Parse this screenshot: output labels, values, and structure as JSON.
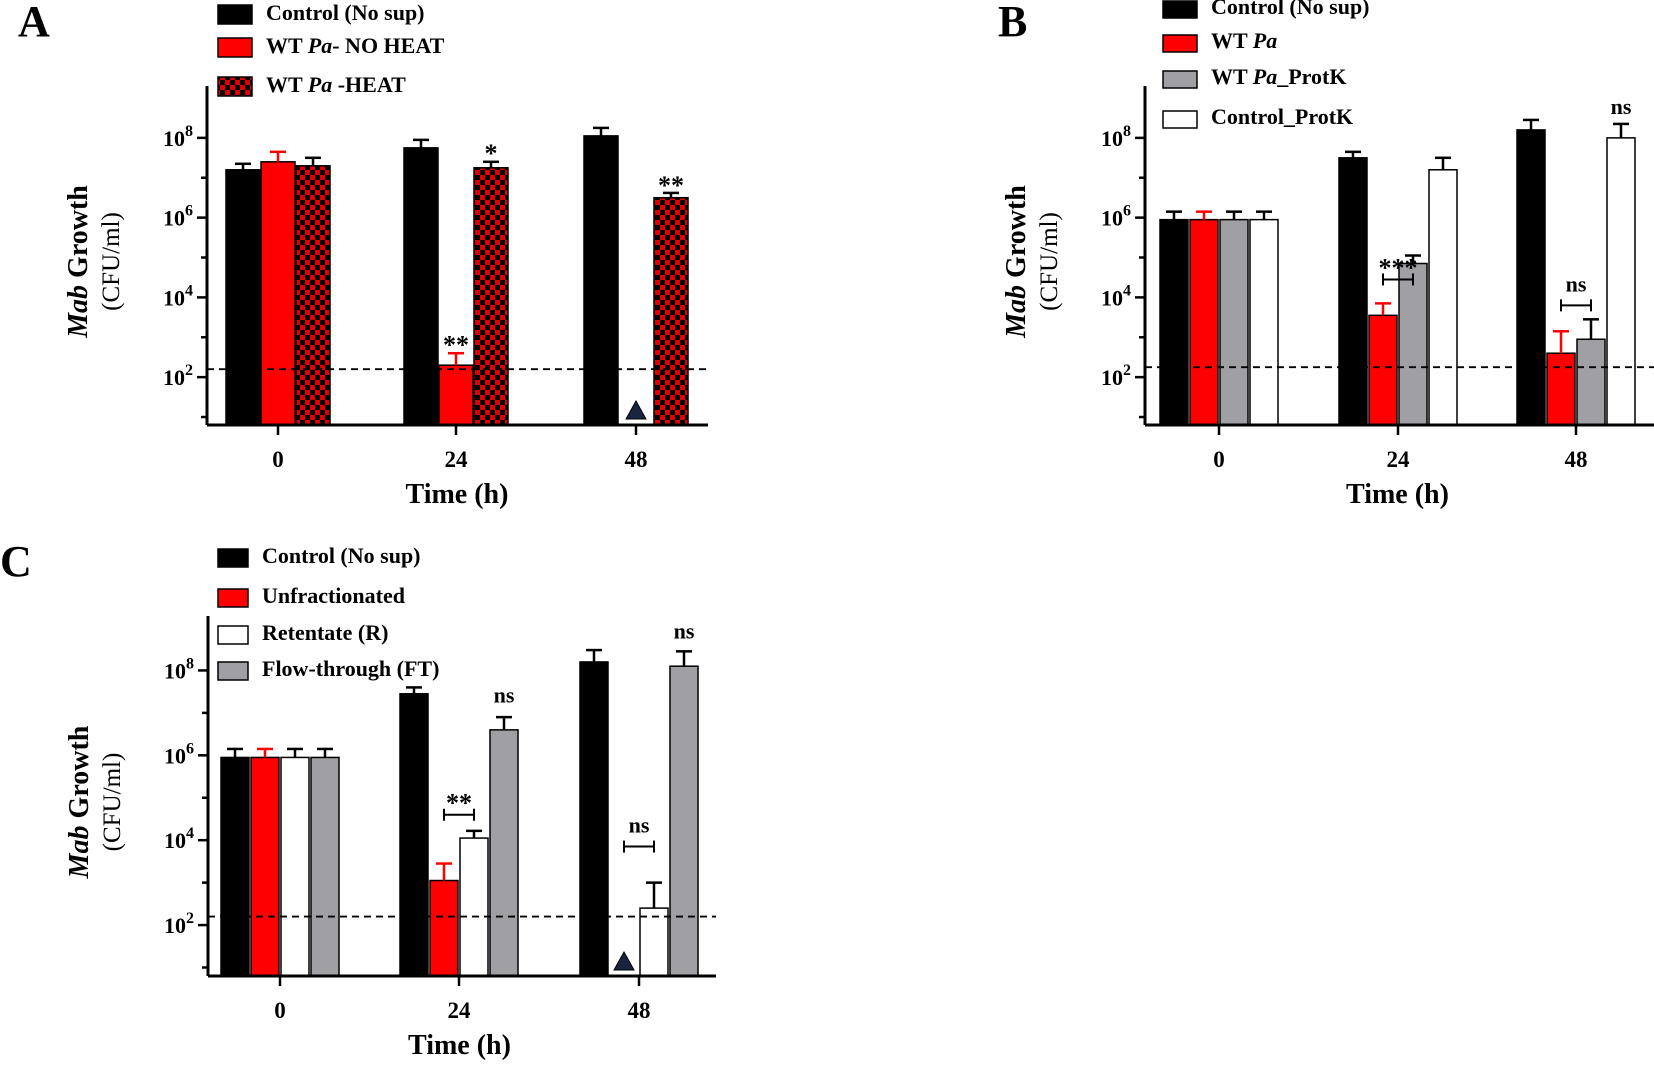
{
  "chart_data": [
    {
      "panel": "A",
      "type": "bar",
      "scale": "log10",
      "categories": [
        "0",
        "24",
        "48"
      ],
      "xlabel": "Time (h)",
      "ylabel_italic": "Mab",
      "ylabel_rest": " Growth",
      "ylabel_units": "(CFU/ml)",
      "ylim_exp": [
        0.8,
        9.0
      ],
      "yticks": [
        {
          "exp": 2,
          "label": "10",
          "sup": "2"
        },
        {
          "exp": 4,
          "label": "10",
          "sup": "4"
        },
        {
          "exp": 6,
          "label": "10",
          "sup": "6"
        },
        {
          "exp": 8,
          "label": "10",
          "sup": "8"
        }
      ],
      "detection_limit_exp": 2.2,
      "series": [
        {
          "name": "Control (No sup)",
          "legend_parts": [
            {
              "t": "Control (No sup)",
              "i": false
            }
          ],
          "color": "#000000",
          "fill": "solid",
          "values_exp": [
            7.2,
            7.75,
            8.05
          ],
          "error_exp": [
            7.35,
            7.95,
            8.25
          ]
        },
        {
          "name": "WT Pa- NO HEAT",
          "legend_parts": [
            {
              "t": "WT ",
              "i": false
            },
            {
              "t": "Pa",
              "i": true
            },
            {
              "t": "- NO HEAT",
              "i": false
            }
          ],
          "color": "#ff0000",
          "fill": "solid",
          "values_exp": [
            7.4,
            2.3,
            null
          ],
          "error_exp": [
            7.65,
            2.6,
            null
          ]
        },
        {
          "name": "WT Pa -HEAT",
          "legend_parts": [
            {
              "t": "WT ",
              "i": false
            },
            {
              "t": "Pa",
              "i": true
            },
            {
              "t": " -HEAT",
              "i": false
            }
          ],
          "color": "#e00000",
          "fill": "checker",
          "values_exp": [
            7.3,
            7.25,
            6.5
          ],
          "error_exp": [
            7.5,
            7.4,
            6.62
          ]
        }
      ],
      "markers": [
        {
          "category": "48",
          "series_index": 1,
          "symbol": "triangle"
        }
      ],
      "annotations": [
        {
          "category": "24",
          "series_index": 1,
          "text": "**",
          "style": "stars",
          "y_exp": 2.95
        },
        {
          "category": "24",
          "series_index": 2,
          "text": "*",
          "style": "stars",
          "y_exp": 7.75
        },
        {
          "category": "48",
          "series_index": 2,
          "text": "**",
          "style": "stars",
          "y_exp": 6.95
        }
      ],
      "brackets": []
    },
    {
      "panel": "B",
      "type": "bar",
      "scale": "log10",
      "categories": [
        "0",
        "24",
        "48"
      ],
      "xlabel": "Time (h)",
      "ylabel_italic": "Mab",
      "ylabel_rest": " Growth",
      "ylabel_units": "(CFU/ml)",
      "ylim_exp": [
        0.8,
        9.0
      ],
      "yticks": [
        {
          "exp": 2,
          "label": "10",
          "sup": "2"
        },
        {
          "exp": 4,
          "label": "10",
          "sup": "4"
        },
        {
          "exp": 6,
          "label": "10",
          "sup": "6"
        },
        {
          "exp": 8,
          "label": "10",
          "sup": "8"
        }
      ],
      "detection_limit_exp": 2.25,
      "series": [
        {
          "name": "Control (No sup)",
          "legend_parts": [
            {
              "t": "Control (No sup)",
              "i": false
            }
          ],
          "color": "#000000",
          "fill": "solid",
          "values_exp": [
            5.95,
            7.5,
            8.2
          ],
          "error_exp": [
            6.15,
            7.65,
            8.45
          ]
        },
        {
          "name": "WT Pa",
          "legend_parts": [
            {
              "t": "WT ",
              "i": false
            },
            {
              "t": "Pa",
              "i": true
            }
          ],
          "color": "#ff0000",
          "fill": "solid",
          "values_exp": [
            5.95,
            3.55,
            2.6
          ],
          "error_exp": [
            6.15,
            3.85,
            3.15
          ]
        },
        {
          "name": "WT Pa_ProtK",
          "legend_parts": [
            {
              "t": "WT ",
              "i": false
            },
            {
              "t": "Pa",
              "i": true
            },
            {
              "t": "_ProtK",
              "i": false
            }
          ],
          "color": "#a0a0a4",
          "fill": "solid",
          "values_exp": [
            5.95,
            4.85,
            2.95
          ],
          "error_exp": [
            6.15,
            5.05,
            3.45
          ]
        },
        {
          "name": "Control_ProtK",
          "legend_parts": [
            {
              "t": "Control_ProtK",
              "i": false
            }
          ],
          "color": "#ffffff",
          "fill": "solid",
          "values_exp": [
            5.95,
            7.2,
            8.0
          ],
          "error_exp": [
            6.15,
            7.5,
            8.35
          ]
        }
      ],
      "markers": [],
      "annotations": [
        {
          "category": "48",
          "series_index": 3,
          "text": "ns",
          "style": "label",
          "y_exp": 8.6
        }
      ],
      "brackets": [
        {
          "category": "24",
          "from": 1,
          "to": 2,
          "y_exp": 4.45,
          "text": "***",
          "style": "stars"
        },
        {
          "category": "48",
          "from": 1,
          "to": 2,
          "y_exp": 3.8,
          "text": "ns",
          "style": "label"
        }
      ]
    },
    {
      "panel": "C",
      "type": "bar",
      "scale": "log10",
      "categories": [
        "0",
        "24",
        "48"
      ],
      "xlabel": "Time (h)",
      "ylabel_italic": "Mab",
      "ylabel_rest": " Growth",
      "ylabel_units": "(CFU/ml)",
      "ylim_exp": [
        0.8,
        9.0
      ],
      "yticks": [
        {
          "exp": 2,
          "label": "10",
          "sup": "2"
        },
        {
          "exp": 4,
          "label": "10",
          "sup": "4"
        },
        {
          "exp": 6,
          "label": "10",
          "sup": "6"
        },
        {
          "exp": 8,
          "label": "10",
          "sup": "8"
        }
      ],
      "detection_limit_exp": 2.2,
      "series": [
        {
          "name": "Control (No sup)",
          "legend_parts": [
            {
              "t": "Control (No sup)",
              "i": false
            }
          ],
          "color": "#000000",
          "fill": "solid",
          "values_exp": [
            5.95,
            7.45,
            8.2
          ],
          "error_exp": [
            6.15,
            7.6,
            8.48
          ]
        },
        {
          "name": "Unfractionated",
          "legend_parts": [
            {
              "t": "Unfractionated",
              "i": false
            }
          ],
          "color": "#ff0000",
          "fill": "solid",
          "values_exp": [
            5.95,
            3.05,
            null
          ],
          "error_exp": [
            6.15,
            3.45,
            null
          ]
        },
        {
          "name": "Retentate (R)",
          "legend_parts": [
            {
              "t": "Retentate (R)",
              "i": false
            }
          ],
          "color": "#ffffff",
          "fill": "solid",
          "values_exp": [
            5.95,
            4.05,
            2.4
          ],
          "error_exp": [
            6.15,
            4.22,
            3.0
          ]
        },
        {
          "name": "Flow-through (FT)",
          "legend_parts": [
            {
              "t": "Flow-through (FT)",
              "i": false
            }
          ],
          "color": "#a0a0a4",
          "fill": "solid",
          "values_exp": [
            5.95,
            6.6,
            8.1
          ],
          "error_exp": [
            6.15,
            6.9,
            8.45
          ]
        }
      ],
      "markers": [
        {
          "category": "48",
          "series_index": 1,
          "symbol": "triangle"
        }
      ],
      "annotations": [
        {
          "category": "24",
          "series_index": 3,
          "text": "ns",
          "style": "label",
          "y_exp": 7.25
        },
        {
          "category": "48",
          "series_index": 3,
          "text": "ns",
          "style": "label",
          "y_exp": 8.75
        }
      ],
      "brackets": [
        {
          "category": "24",
          "from": 1,
          "to": 2,
          "y_exp": 4.6,
          "text": "**",
          "style": "stars"
        },
        {
          "category": "48",
          "from": 1,
          "to": 2,
          "y_exp": 3.85,
          "text": "ns",
          "style": "label"
        }
      ]
    }
  ]
}
